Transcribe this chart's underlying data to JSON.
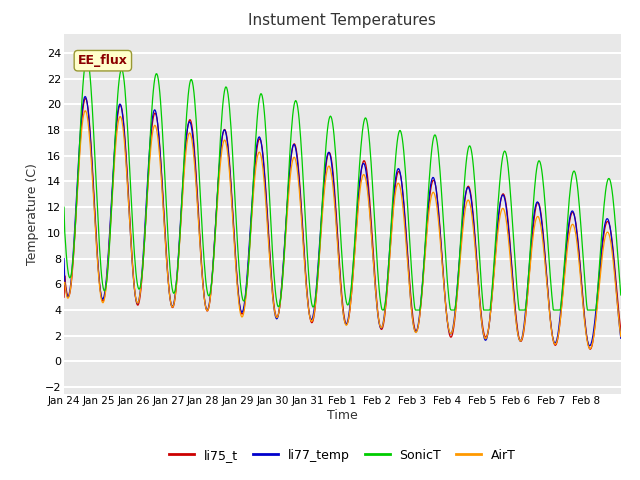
{
  "title": "Instument Temperatures",
  "xlabel": "Time",
  "ylabel": "Temperature (C)",
  "ylim": [
    -2.5,
    25.5
  ],
  "yticks": [
    -2,
    0,
    2,
    4,
    6,
    8,
    10,
    12,
    14,
    16,
    18,
    20,
    22,
    24
  ],
  "xtick_labels": [
    "Jan 24",
    "Jan 25",
    "Jan 26",
    "Jan 27",
    "Jan 28",
    "Jan 29",
    "Jan 30",
    "Jan 31",
    "Feb 1",
    "Feb 2",
    "Feb 3",
    "Feb 4",
    "Feb 5",
    "Feb 6",
    "Feb 7",
    "Feb 8"
  ],
  "colors": {
    "li75_t": "#cc0000",
    "li77_temp": "#0000cc",
    "SonicT": "#00cc00",
    "AirT": "#ff9900"
  },
  "background_color": "#ffffff",
  "plot_bg_color": "#e8e8e8",
  "grid_color": "#ffffff",
  "annotation_text": "EE_flux",
  "annotation_color": "#8b0000",
  "annotation_bg": "#ffffcc",
  "legend_items": [
    "li75_t",
    "li77_temp",
    "SonicT",
    "AirT"
  ]
}
